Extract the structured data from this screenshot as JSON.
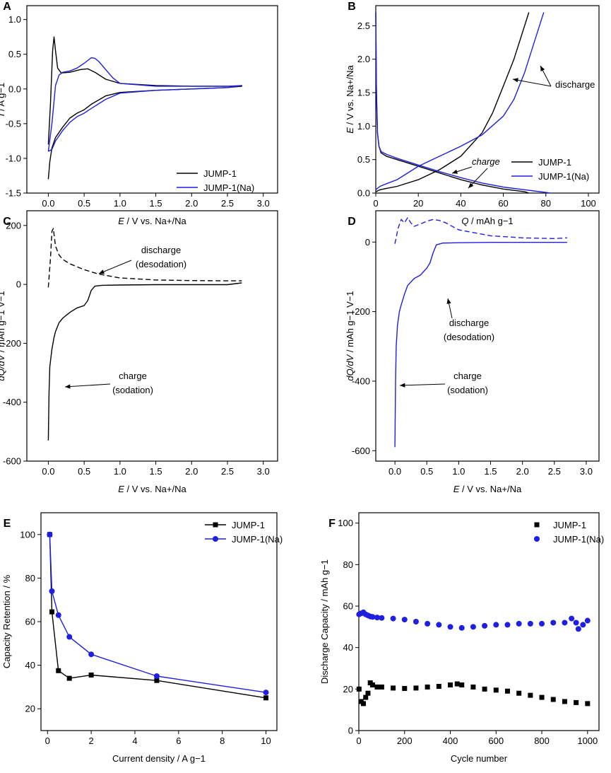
{
  "chart_data": [
    {
      "panel": "A",
      "type": "line",
      "xlabel_main": "E",
      "xlabel_rest": " / V vs. Na+/Na",
      "ylabel_main": "I",
      "ylabel_rest": " / A g−1",
      "xlim": [
        -0.3,
        3.2
      ],
      "ylim": [
        -1.5,
        1.2
      ],
      "xticks": [
        "0.0",
        "0.5",
        "1.0",
        "1.5",
        "2.0",
        "2.5",
        "3.0"
      ],
      "yticks": [
        "-1.5",
        "-1.0",
        "-0.5",
        "0.0",
        "0.5",
        "1.0"
      ],
      "legend_position": "bottom-right",
      "series": [
        {
          "name": "JUMP-1",
          "color": "#000000",
          "x": [
            0.0,
            0.03,
            0.06,
            0.08,
            0.1,
            0.13,
            0.18,
            0.3,
            0.45,
            0.55,
            0.65,
            0.8,
            1.0,
            1.5,
            2.0,
            2.5,
            2.7,
            2.5,
            2.0,
            1.5,
            1.0,
            0.8,
            0.6,
            0.5,
            0.4,
            0.3,
            0.2,
            0.1,
            0.05,
            0.02,
            0.0
          ],
          "y": [
            -0.8,
            -0.2,
            0.55,
            0.75,
            0.55,
            0.3,
            0.23,
            0.24,
            0.28,
            0.29,
            0.24,
            0.14,
            0.08,
            0.05,
            0.04,
            0.04,
            0.04,
            0.02,
            0.0,
            -0.02,
            -0.05,
            -0.1,
            -0.22,
            -0.3,
            -0.35,
            -0.42,
            -0.55,
            -0.7,
            -0.85,
            -1.05,
            -1.3
          ]
        },
        {
          "name": "JUMP-1(Na)",
          "color": "#1f1fe0",
          "x": [
            0.0,
            0.05,
            0.1,
            0.15,
            0.2,
            0.3,
            0.4,
            0.5,
            0.6,
            0.65,
            0.7,
            0.8,
            0.9,
            1.0,
            1.5,
            2.0,
            2.5,
            2.7,
            2.5,
            2.0,
            1.5,
            1.0,
            0.8,
            0.6,
            0.5,
            0.4,
            0.3,
            0.2,
            0.1,
            0.05,
            0.0
          ],
          "y": [
            -0.9,
            -0.5,
            0.05,
            0.2,
            0.24,
            0.26,
            0.3,
            0.37,
            0.45,
            0.44,
            0.4,
            0.28,
            0.16,
            0.08,
            0.04,
            0.04,
            0.04,
            0.05,
            0.02,
            0.0,
            -0.02,
            -0.06,
            -0.15,
            -0.28,
            -0.35,
            -0.4,
            -0.48,
            -0.6,
            -0.75,
            -0.87,
            -0.9
          ]
        }
      ]
    },
    {
      "panel": "B",
      "type": "line",
      "xlabel_main": "Q",
      "xlabel_rest": " / mAh g−1",
      "ylabel_main": "E",
      "ylabel_rest": " / V vs. Na+/Na",
      "xlim": [
        0,
        105
      ],
      "ylim": [
        0,
        2.8
      ],
      "xticks": [
        "0",
        "20",
        "40",
        "60",
        "80",
        "100"
      ],
      "yticks": [
        "0.0",
        "0.5",
        "1.0",
        "1.5",
        "2.0",
        "2.5"
      ],
      "legend_position": "bottom-right",
      "annotations": [
        "discharge",
        "charge"
      ],
      "series": [
        {
          "name": "JUMP-1 discharge",
          "color": "#000000",
          "x": [
            0,
            2,
            5,
            10,
            20,
            30,
            40,
            50,
            55,
            60,
            65,
            70,
            72
          ],
          "y": [
            0.02,
            0.05,
            0.07,
            0.1,
            0.2,
            0.35,
            0.55,
            0.9,
            1.2,
            1.6,
            2.0,
            2.5,
            2.7
          ]
        },
        {
          "name": "JUMP-1 charge",
          "color": "#000000",
          "x": [
            0,
            0.3,
            0.8,
            1.5,
            2.5,
            5,
            10,
            20,
            30,
            40,
            50,
            60,
            70,
            72
          ],
          "y": [
            2.7,
            1.5,
            0.9,
            0.7,
            0.6,
            0.55,
            0.5,
            0.4,
            0.3,
            0.2,
            0.12,
            0.06,
            0.02,
            0.0
          ]
        },
        {
          "name": "JUMP-1(Na) discharge",
          "color": "#1f1fe0",
          "x": [
            0,
            2,
            5,
            10,
            20,
            30,
            40,
            50,
            60,
            65,
            70,
            75,
            79
          ],
          "y": [
            0.05,
            0.1,
            0.14,
            0.2,
            0.4,
            0.55,
            0.7,
            0.87,
            1.15,
            1.4,
            1.8,
            2.3,
            2.7
          ]
        },
        {
          "name": "JUMP-1(Na) charge",
          "color": "#1f1fe0",
          "x": [
            0,
            0.3,
            0.8,
            1.5,
            2.5,
            5,
            10,
            20,
            30,
            40,
            50,
            60,
            70,
            80,
            82
          ],
          "y": [
            2.7,
            1.6,
            0.9,
            0.7,
            0.62,
            0.58,
            0.52,
            0.42,
            0.32,
            0.23,
            0.15,
            0.09,
            0.05,
            0.01,
            0.0
          ]
        }
      ],
      "legend": [
        {
          "name": "JUMP-1",
          "color": "#000000"
        },
        {
          "name": "JUMP-1(Na)",
          "color": "#1f1fe0"
        }
      ]
    },
    {
      "panel": "C",
      "type": "line",
      "xlabel_main": "E",
      "xlabel_rest": " / V vs. Na+/Na",
      "ylabel_main": "dQ/dV",
      "ylabel_rest": " / mAh g−1 V−1",
      "xlim": [
        -0.3,
        3.2
      ],
      "ylim": [
        -600,
        250
      ],
      "xticks": [
        "0.0",
        "0.5",
        "1.0",
        "1.5",
        "2.0",
        "2.5",
        "3.0"
      ],
      "yticks": [
        "-600",
        "-400",
        "-200",
        "0",
        "200"
      ],
      "annotations": [
        "discharge",
        "(desodation)",
        "charge",
        "(sodation)"
      ],
      "series": [
        {
          "name": "discharge",
          "color": "#000000",
          "dash": true,
          "x": [
            0.0,
            0.03,
            0.05,
            0.07,
            0.1,
            0.15,
            0.2,
            0.3,
            0.5,
            0.7,
            1.0,
            1.5,
            2.0,
            2.5,
            2.7
          ],
          "y": [
            -10,
            90,
            180,
            190,
            130,
            100,
            85,
            70,
            50,
            35,
            22,
            15,
            13,
            12,
            12
          ]
        },
        {
          "name": "charge",
          "color": "#000000",
          "dash": false,
          "x": [
            0.0,
            0.01,
            0.02,
            0.05,
            0.08,
            0.1,
            0.15,
            0.2,
            0.3,
            0.4,
            0.5,
            0.55,
            0.6,
            0.65,
            0.75,
            1.0,
            1.5,
            2.0,
            2.5,
            2.7
          ],
          "y": [
            -530,
            -370,
            -280,
            -220,
            -180,
            -160,
            -130,
            -115,
            -95,
            -80,
            -72,
            -55,
            -20,
            -6,
            -3,
            -2,
            -1,
            -1,
            -1,
            5
          ]
        }
      ]
    },
    {
      "panel": "D",
      "type": "line",
      "xlabel_main": "E",
      "xlabel_rest": " / V vs. Na+/Na",
      "ylabel_main": "dQ/dV",
      "ylabel_rest": " / mAh g−1 V−1",
      "xlim": [
        -0.3,
        3.2
      ],
      "ylim": [
        -630,
        90
      ],
      "xticks": [
        "0.0",
        "0.5",
        "1.0",
        "1.5",
        "2.0",
        "2.5",
        "3.0"
      ],
      "yticks": [
        "-600",
        "-400",
        "-200",
        "0"
      ],
      "annotations": [
        "discharge",
        "(desodation)",
        "charge",
        "(sodation)"
      ],
      "series": [
        {
          "name": "discharge",
          "color": "#1f1fe0",
          "dash": true,
          "x": [
            0.0,
            0.05,
            0.1,
            0.15,
            0.2,
            0.25,
            0.3,
            0.4,
            0.5,
            0.6,
            0.7,
            0.8,
            1.0,
            1.5,
            2.0,
            2.5,
            2.7
          ],
          "y": [
            -5,
            40,
            65,
            55,
            70,
            55,
            45,
            52,
            60,
            65,
            62,
            55,
            35,
            18,
            12,
            10,
            12
          ]
        },
        {
          "name": "charge",
          "color": "#1f1fe0",
          "dash": false,
          "x": [
            0.0,
            0.01,
            0.02,
            0.04,
            0.07,
            0.1,
            0.15,
            0.2,
            0.3,
            0.4,
            0.5,
            0.55,
            0.6,
            0.65,
            0.75,
            1.0,
            1.5,
            2.0,
            2.5,
            2.7
          ],
          "y": [
            -590,
            -400,
            -300,
            -240,
            -200,
            -180,
            -150,
            -125,
            -105,
            -95,
            -75,
            -60,
            -30,
            -8,
            -3,
            -2,
            -1,
            -1,
            -1,
            -1
          ]
        }
      ]
    },
    {
      "panel": "E",
      "type": "line",
      "xlabel": "Current density / A g−1",
      "ylabel": "Capacity Retention / %",
      "xlim": [
        -0.3,
        10.5
      ],
      "ylim": [
        10,
        110
      ],
      "xticks": [
        "0",
        "2",
        "4",
        "6",
        "8",
        "10"
      ],
      "yticks": [
        "20",
        "40",
        "60",
        "80",
        "100"
      ],
      "legend_position": "top-right",
      "series": [
        {
          "name": "JUMP-1",
          "color": "#000000",
          "marker": "square",
          "x": [
            0.1,
            0.2,
            0.5,
            1,
            2,
            5,
            10
          ],
          "y": [
            100,
            64.5,
            37.5,
            34,
            35.5,
            33,
            25
          ]
        },
        {
          "name": "JUMP-1(Na)",
          "color": "#1f1fe0",
          "marker": "circle",
          "x": [
            0.1,
            0.2,
            0.5,
            1,
            2,
            5,
            10
          ],
          "y": [
            100,
            74,
            63,
            53,
            45,
            35,
            27.5
          ]
        }
      ]
    },
    {
      "panel": "F",
      "type": "scatter",
      "xlabel": "Cycle number",
      "ylabel": "Discharge Capacity / mAh g−1",
      "xlim": [
        0,
        1050
      ],
      "ylim": [
        0,
        105
      ],
      "xticks": [
        "0",
        "200",
        "400",
        "600",
        "800",
        "1000"
      ],
      "yticks": [
        "0",
        "20",
        "40",
        "60",
        "80",
        "100"
      ],
      "legend_position": "top-right",
      "series": [
        {
          "name": "JUMP-1",
          "color": "#000000",
          "marker": "square",
          "x": [
            1,
            10,
            20,
            30,
            40,
            50,
            60,
            80,
            100,
            150,
            200,
            250,
            300,
            350,
            400,
            430,
            450,
            500,
            550,
            600,
            650,
            700,
            750,
            800,
            850,
            900,
            950,
            1000
          ],
          "y": [
            20,
            14,
            13,
            16,
            18,
            23,
            22,
            21,
            21,
            20.5,
            20.3,
            20.5,
            21,
            21.3,
            22,
            22.5,
            22,
            21,
            20,
            19.5,
            19,
            18,
            17,
            16,
            15,
            14,
            13.5,
            13
          ]
        },
        {
          "name": "JUMP-1(Na)",
          "color": "#1f1fe0",
          "marker": "circle",
          "x": [
            1,
            10,
            20,
            30,
            40,
            50,
            60,
            80,
            100,
            150,
            200,
            250,
            300,
            350,
            400,
            450,
            500,
            550,
            600,
            650,
            700,
            750,
            800,
            850,
            900,
            930,
            950,
            960,
            980,
            1000
          ],
          "y": [
            56,
            56.5,
            57,
            56,
            55.5,
            55,
            54.8,
            54.5,
            54.3,
            54,
            53.5,
            52.5,
            51.5,
            51,
            50,
            49.5,
            50,
            50.5,
            51,
            51,
            51.5,
            51.5,
            51.5,
            52,
            52,
            54,
            52,
            49,
            51,
            53
          ]
        }
      ]
    }
  ]
}
